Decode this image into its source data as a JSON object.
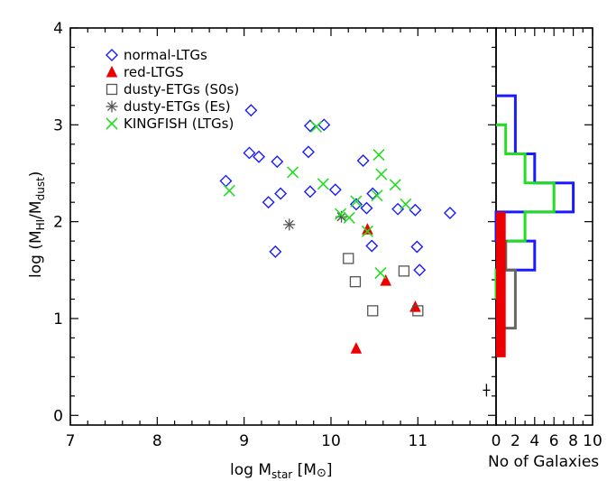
{
  "chart_data": {
    "type": "scatter",
    "xlabel": "log M_star [M_sun]",
    "xlabel_parts": {
      "main": "log M",
      "sub": "star",
      "bracket_open": " [M",
      "bracket_close": "]"
    },
    "ylabel_parts": {
      "main": "log (M",
      "sub1": "HI",
      "mid": "/M",
      "sub2": "dust",
      "close": ")"
    },
    "xlim": [
      7,
      11.9
    ],
    "ylim": [
      -0.1,
      4
    ],
    "xticks": [
      "7",
      "8",
      "9",
      "10",
      "11"
    ],
    "yticks": [
      "0",
      "1",
      "2",
      "3",
      "4"
    ],
    "legend": [
      {
        "label": "normal-LTGs",
        "marker": "diamond",
        "color": "#1a1aff"
      },
      {
        "label": "red-LTGS",
        "marker": "triangle",
        "color": "#ee0000"
      },
      {
        "label": "dusty-ETGs (S0s)",
        "marker": "square",
        "color": "#555555"
      },
      {
        "label": "dusty-ETGs (Es)",
        "marker": "asterisk",
        "color": "#555555"
      },
      {
        "label": "KINGFISH (LTGs)",
        "marker": "x",
        "color": "#22dd22"
      }
    ],
    "series": [
      {
        "name": "normal-LTGs",
        "marker": "diamond",
        "color": "#1a1aff",
        "points": [
          [
            8.79,
            2.42
          ],
          [
            9.08,
            3.15
          ],
          [
            9.06,
            2.71
          ],
          [
            9.17,
            2.67
          ],
          [
            9.28,
            2.2
          ],
          [
            9.38,
            2.62
          ],
          [
            9.42,
            2.29
          ],
          [
            9.36,
            1.69
          ],
          [
            9.76,
            2.99
          ],
          [
            9.74,
            2.72
          ],
          [
            9.76,
            2.31
          ],
          [
            9.92,
            3.0
          ],
          [
            10.05,
            2.33
          ],
          [
            10.29,
            2.18
          ],
          [
            10.37,
            2.63
          ],
          [
            10.41,
            2.14
          ],
          [
            10.48,
            2.29
          ],
          [
            10.47,
            1.75
          ],
          [
            10.77,
            2.13
          ],
          [
            10.97,
            2.12
          ],
          [
            10.99,
            1.74
          ],
          [
            11.02,
            1.5
          ],
          [
            11.37,
            2.09
          ]
        ]
      },
      {
        "name": "red-LTGS",
        "marker": "triangle",
        "color": "#ee0000",
        "points": [
          [
            10.42,
            1.92
          ],
          [
            10.29,
            0.69
          ],
          [
            10.63,
            1.39
          ],
          [
            10.97,
            1.12
          ]
        ]
      },
      {
        "name": "dusty-ETGs (S0s)",
        "marker": "square",
        "color": "#555555",
        "points": [
          [
            10.2,
            1.62
          ],
          [
            10.28,
            1.38
          ],
          [
            10.48,
            1.08
          ],
          [
            10.84,
            1.49
          ],
          [
            11.0,
            1.08
          ]
        ]
      },
      {
        "name": "dusty-ETGs (Es)",
        "marker": "asterisk",
        "color": "#555555",
        "points": [
          [
            9.52,
            1.97
          ],
          [
            10.12,
            2.05
          ]
        ]
      },
      {
        "name": "KINGFISH (LTGs)",
        "marker": "x",
        "color": "#22dd22",
        "points": [
          [
            8.83,
            2.32
          ],
          [
            9.56,
            2.51
          ],
          [
            9.83,
            2.98
          ],
          [
            9.91,
            2.39
          ],
          [
            10.11,
            2.08
          ],
          [
            10.21,
            2.04
          ],
          [
            10.29,
            2.21
          ],
          [
            10.42,
            1.9
          ],
          [
            10.53,
            2.27
          ],
          [
            10.55,
            2.69
          ],
          [
            10.58,
            2.49
          ],
          [
            10.74,
            2.38
          ],
          [
            10.86,
            2.18
          ],
          [
            10.57,
            1.47
          ]
        ]
      }
    ],
    "errorbar": {
      "x": 11.79,
      "y": 0.26
    },
    "histogram": {
      "xlabel": "No of Galaxies",
      "xticks": [
        "0",
        "2",
        "4",
        "6",
        "8",
        "10"
      ],
      "xlim": [
        0,
        10
      ],
      "series": [
        {
          "name": "normal-LTGs",
          "color": "#1a1aff",
          "bins": [
            [
              1.5,
              1.8,
              4
            ],
            [
              1.8,
              2.1,
              0
            ],
            [
              2.1,
              2.4,
              8
            ],
            [
              2.4,
              2.7,
              4
            ],
            [
              2.7,
              3.0,
              2
            ],
            [
              3.0,
              3.3,
              2
            ]
          ]
        },
        {
          "name": "KINGFISH (LTGs)",
          "color": "#22dd22",
          "bins": [
            [
              1.2,
              1.5,
              0
            ],
            [
              1.5,
              1.8,
              1
            ],
            [
              1.8,
              2.1,
              3
            ],
            [
              2.1,
              2.4,
              6
            ],
            [
              2.4,
              2.7,
              3
            ],
            [
              2.7,
              3.0,
              1
            ]
          ]
        },
        {
          "name": "dusty-ETGs",
          "color": "#666666",
          "bins": [
            [
              0.9,
              1.2,
              2
            ],
            [
              1.2,
              1.5,
              2
            ],
            [
              1.5,
              1.8,
              1
            ]
          ]
        },
        {
          "name": "red-LTGS",
          "color": "#ee0000",
          "filled": true,
          "bins": [
            [
              0.6,
              2.1,
              1
            ]
          ]
        }
      ]
    }
  }
}
